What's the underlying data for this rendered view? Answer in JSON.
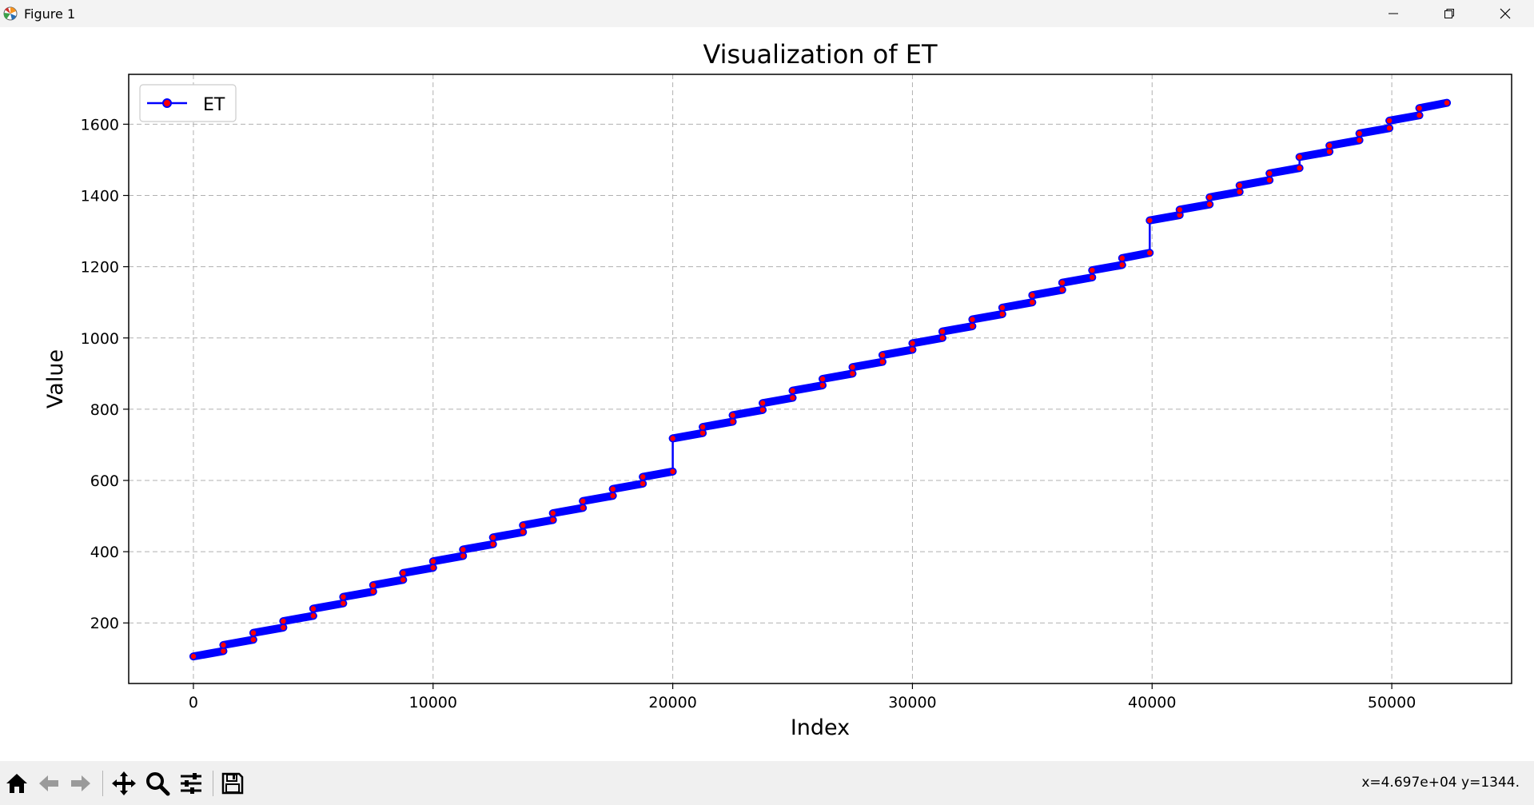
{
  "window": {
    "title": "Figure 1",
    "icon": "matplotlib-icon"
  },
  "controls": [
    "minimize-icon",
    "restore-icon",
    "close-icon"
  ],
  "toolbar": {
    "buttons": [
      "home-icon",
      "back-arrow-icon",
      "forward-arrow-icon",
      "pan-icon",
      "zoom-icon",
      "configure-subplots-icon",
      "save-icon"
    ],
    "coordinates": "x=4.697e+04 y=1344."
  },
  "colors": {
    "line": "#0000ff",
    "marker_face": "#ff0000",
    "grid": "#b0b0b0"
  },
  "chart_data": {
    "type": "line",
    "title": "Visualization of ET",
    "xlabel": "Index",
    "ylabel": "Value",
    "xlim": [
      -2700,
      55000
    ],
    "ylim": [
      30,
      1740
    ],
    "xticks": [
      0,
      10000,
      20000,
      30000,
      40000,
      50000
    ],
    "yticks": [
      200,
      400,
      600,
      800,
      1000,
      1200,
      1400,
      1600
    ],
    "grid": true,
    "grid_style": "dashed",
    "legend": {
      "position": "top-left",
      "entries": [
        "ET"
      ]
    },
    "series": [
      {
        "name": "ET",
        "marker": "circle",
        "x": [
          0,
          1250,
          1250,
          2500,
          2500,
          3750,
          3750,
          5000,
          5000,
          6250,
          6250,
          7500,
          7500,
          8750,
          8750,
          10000,
          10000,
          11250,
          11250,
          12500,
          12500,
          13750,
          13750,
          15000,
          15000,
          16250,
          16250,
          17500,
          17500,
          18750,
          18750,
          20000,
          20000,
          21250,
          21250,
          22500,
          22500,
          23750,
          23750,
          25000,
          25000,
          26250,
          26250,
          27500,
          27500,
          28750,
          28750,
          30000,
          30000,
          31250,
          31250,
          32500,
          32500,
          33750,
          33750,
          35000,
          35000,
          36250,
          36250,
          37500,
          37500,
          38750,
          38750,
          39900,
          39900,
          41150,
          41150,
          42400,
          42400,
          43650,
          43650,
          44900,
          44900,
          46150,
          46150,
          47400,
          47400,
          48650,
          48650,
          49900,
          49900,
          51150,
          51150,
          52300
        ],
        "y": [
          106,
          121,
          138,
          153,
          172,
          187,
          205,
          220,
          240,
          255,
          273,
          288,
          306,
          321,
          340,
          355,
          373,
          388,
          406,
          421,
          440,
          455,
          474,
          489,
          508,
          523,
          542,
          557,
          576,
          591,
          610,
          625,
          718,
          733,
          750,
          765,
          783,
          798,
          817,
          832,
          852,
          867,
          885,
          900,
          918,
          933,
          952,
          967,
          985,
          1000,
          1018,
          1033,
          1052,
          1067,
          1085,
          1100,
          1120,
          1135,
          1155,
          1170,
          1190,
          1205,
          1224,
          1239,
          1330,
          1345,
          1360,
          1375,
          1395,
          1410,
          1428,
          1443,
          1462,
          1477,
          1508,
          1523,
          1540,
          1555,
          1574,
          1589,
          1610,
          1625,
          1645,
          1660
        ]
      }
    ]
  }
}
